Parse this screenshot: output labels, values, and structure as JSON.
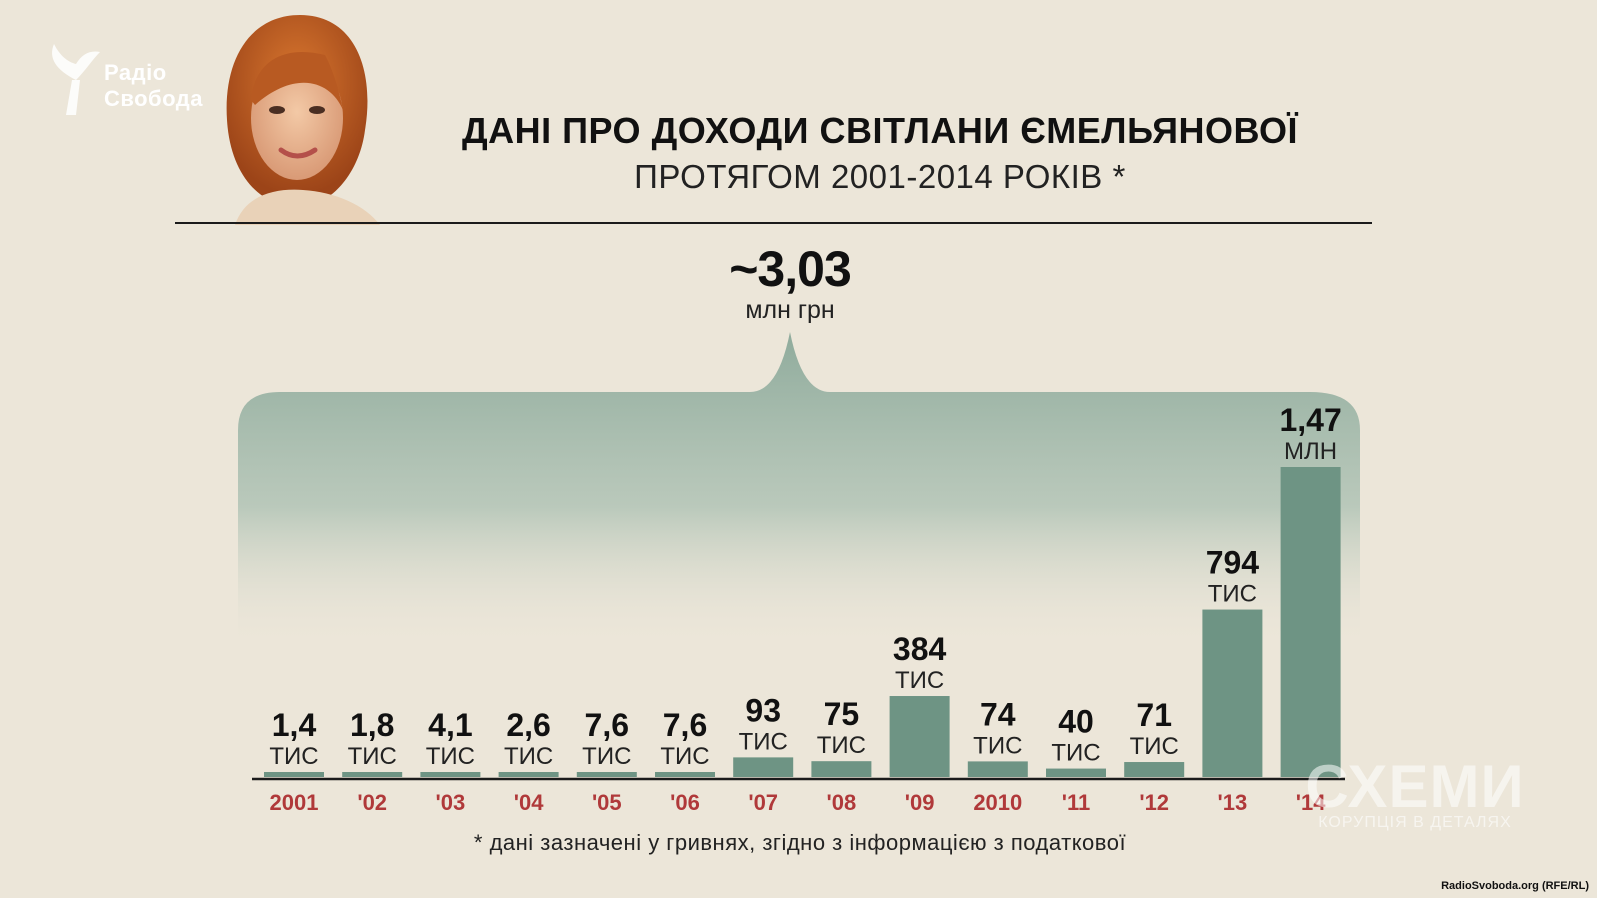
{
  "logo": {
    "line1": "Радіо",
    "line2": "Свобода"
  },
  "header": {
    "title": "ДАНІ ПРО ДОХОДИ СВІТЛАНИ ЄМЕЛЬЯНОВОЇ",
    "subtitle": "ПРОТЯГОМ 2001-2014 РОКІВ *"
  },
  "total": {
    "value": "~3,03",
    "unit": "млн грн"
  },
  "footnote": "* дані зазначені у гривнях, згідно з інформацією з податкової",
  "watermark": {
    "title": "СХЕМИ",
    "subtitle": "КОРУПЦІЯ В ДЕТАЛЯХ"
  },
  "credit": "RadioSvoboda.org (RFE/RL)",
  "colors": {
    "bar": "#6e9484",
    "brace": "#8fab9c",
    "year": "#b0393a",
    "background": "#ece6d9"
  },
  "chart_data": {
    "type": "bar",
    "unit_note": "values in thousand UAH",
    "categories": [
      "2001",
      "'02",
      "'03",
      "'04",
      "'05",
      "'06",
      "'07",
      "'08",
      "'09",
      "2010",
      "'11",
      "'12",
      "'13",
      "'14"
    ],
    "values": [
      1.4,
      1.8,
      4.1,
      2.6,
      7.6,
      7.6,
      93,
      75,
      384,
      74,
      40,
      71,
      794,
      1470
    ],
    "labels": [
      {
        "value": "1,4",
        "unit": "ТИС"
      },
      {
        "value": "1,8",
        "unit": "ТИС"
      },
      {
        "value": "4,1",
        "unit": "ТИС"
      },
      {
        "value": "2,6",
        "unit": "ТИС"
      },
      {
        "value": "7,6",
        "unit": "ТИС"
      },
      {
        "value": "7,6",
        "unit": "ТИС"
      },
      {
        "value": "93",
        "unit": "ТИС"
      },
      {
        "value": "75",
        "unit": "ТИС"
      },
      {
        "value": "384",
        "unit": "ТИС"
      },
      {
        "value": "74",
        "unit": "ТИС"
      },
      {
        "value": "40",
        "unit": "ТИС"
      },
      {
        "value": "71",
        "unit": "ТИС"
      },
      {
        "value": "794",
        "unit": "ТИС"
      },
      {
        "value": "1,47",
        "unit": "МЛН"
      }
    ],
    "ylim": [
      0,
      1470
    ],
    "grid": false
  }
}
